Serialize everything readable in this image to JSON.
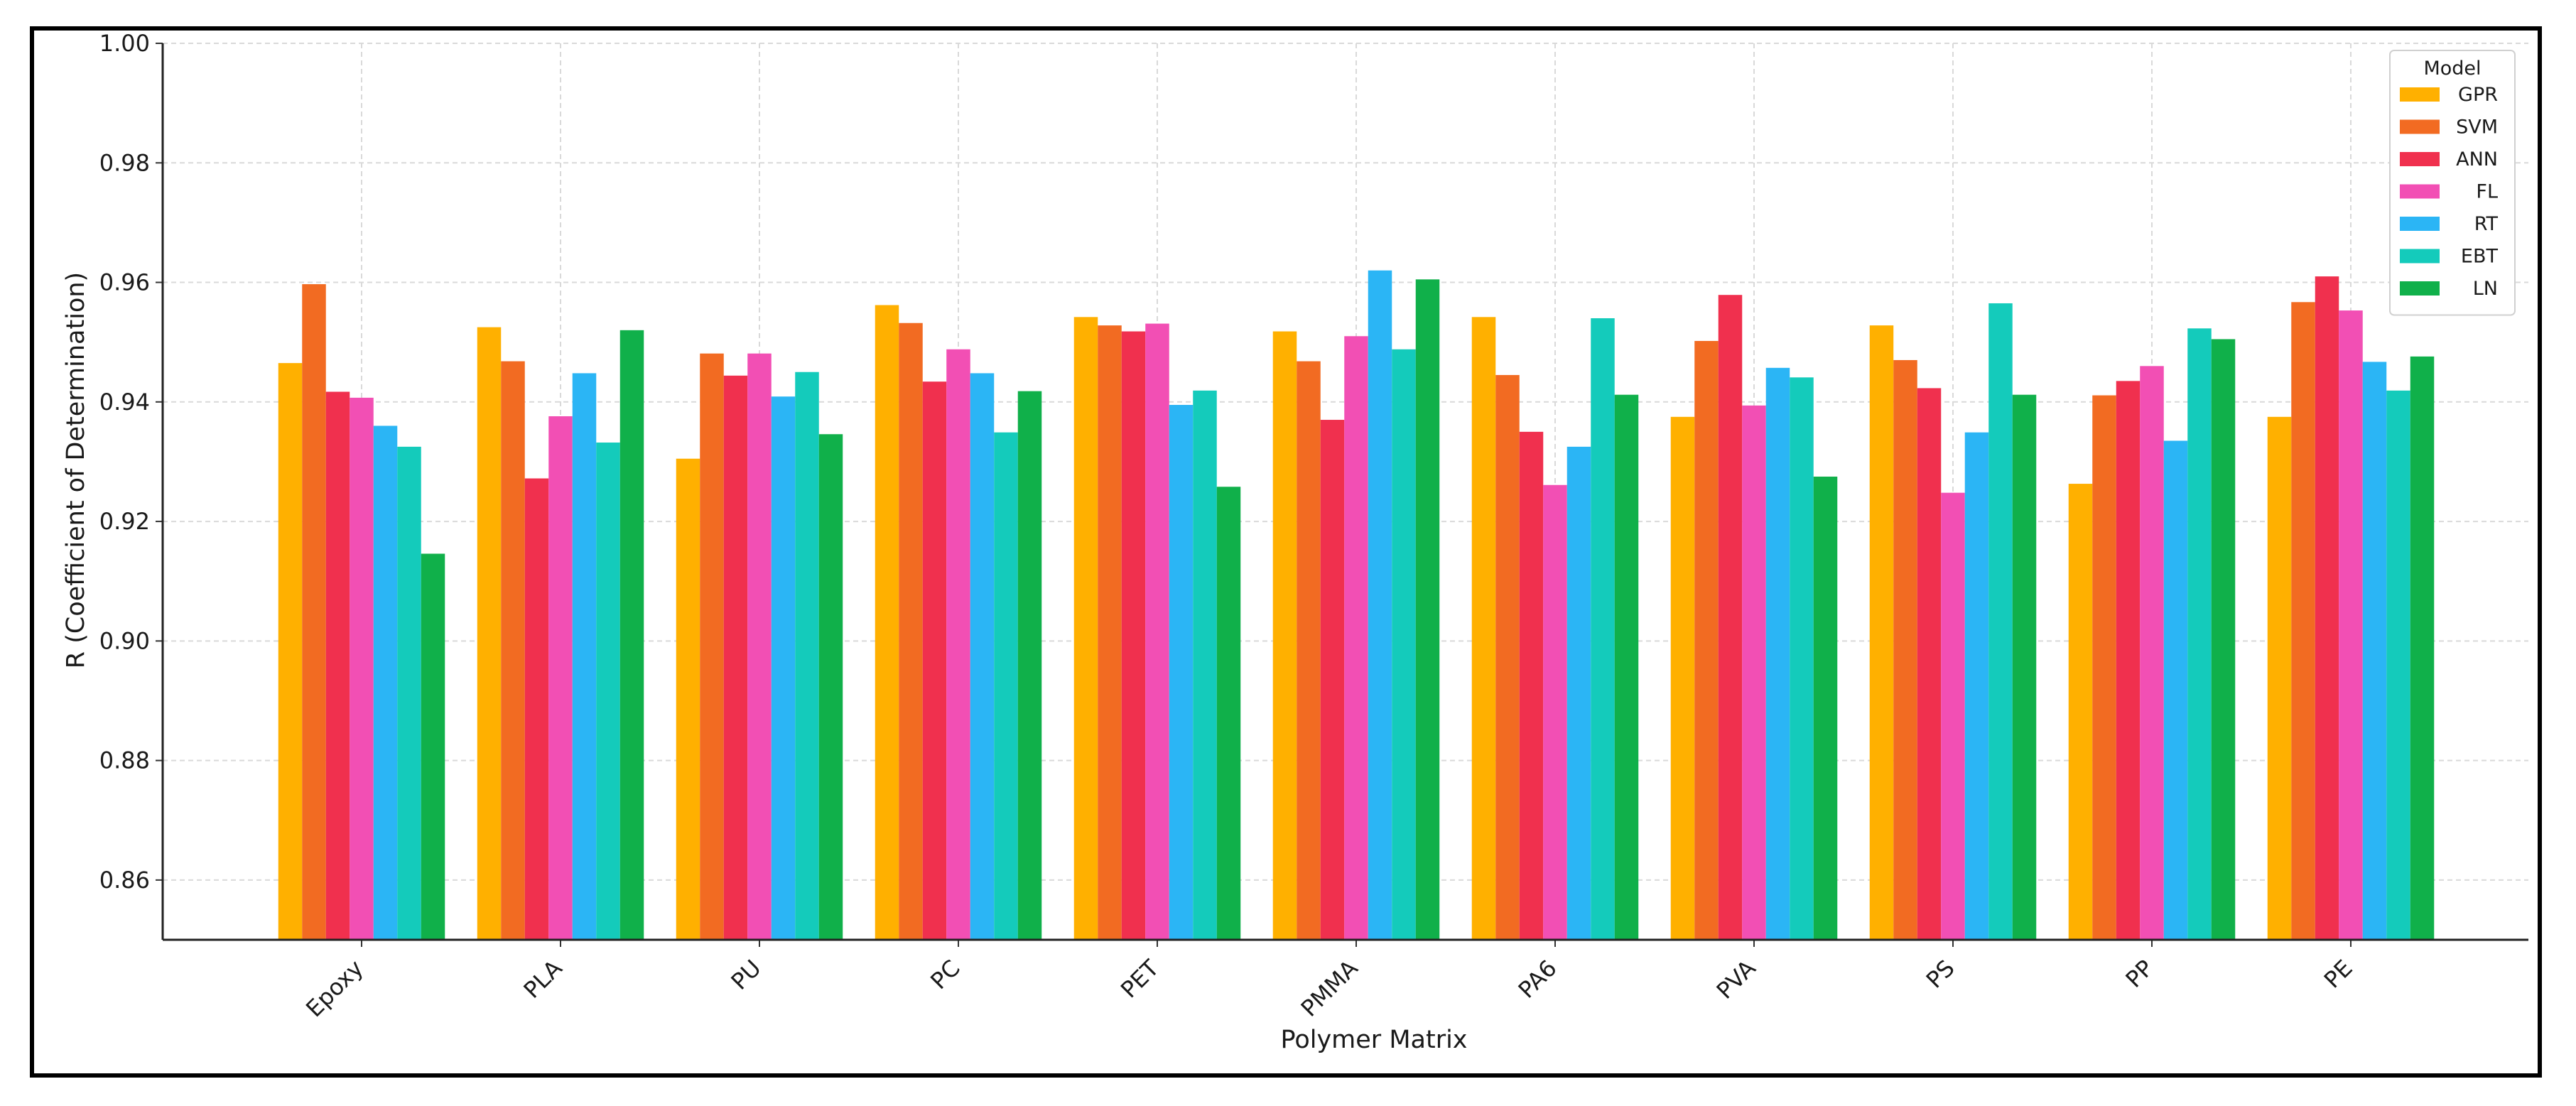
{
  "chart_data": {
    "type": "bar",
    "title": "",
    "xlabel": "Polymer Matrix",
    "ylabel": "R (Coefficient of Determination)",
    "ylim": [
      0.85,
      1.0
    ],
    "yticks": [
      "0.86",
      "0.88",
      "0.90",
      "0.92",
      "0.94",
      "0.96",
      "0.98",
      "1.00"
    ],
    "grid": true,
    "legend_title": "Model",
    "legend_position": "top-right",
    "categories": [
      "Epoxy",
      "PLA",
      "PU",
      "PC",
      "PET",
      "PMMA",
      "PA6",
      "PVA",
      "PS",
      "PP",
      "PE"
    ],
    "series": [
      {
        "name": "GPR",
        "color": "#FFB000",
        "values": [
          0.9465,
          0.9525,
          0.9305,
          0.9562,
          0.9542,
          0.9518,
          0.9542,
          0.9375,
          0.9528,
          0.9263,
          0.9375
        ]
      },
      {
        "name": "SVM",
        "color": "#F26B22",
        "values": [
          0.9597,
          0.9468,
          0.9481,
          0.9532,
          0.9528,
          0.9468,
          0.9445,
          0.9502,
          0.947,
          0.9411,
          0.9567
        ]
      },
      {
        "name": "ANN",
        "color": "#F0304E",
        "values": [
          0.9417,
          0.9272,
          0.9444,
          0.9434,
          0.9518,
          0.937,
          0.935,
          0.9579,
          0.9423,
          0.9435,
          0.961
        ]
      },
      {
        "name": "FL",
        "color": "#F24FB4",
        "values": [
          0.9407,
          0.9376,
          0.9481,
          0.9488,
          0.9531,
          0.951,
          0.9261,
          0.9394,
          0.9248,
          0.946,
          0.9553
        ]
      },
      {
        "name": "RT",
        "color": "#2BB5F5",
        "values": [
          0.936,
          0.9448,
          0.9409,
          0.9448,
          0.9395,
          0.962,
          0.9325,
          0.9457,
          0.9349,
          0.9335,
          0.9467
        ]
      },
      {
        "name": "EBT",
        "color": "#14CBBB",
        "values": [
          0.9325,
          0.9332,
          0.945,
          0.9349,
          0.9419,
          0.9488,
          0.954,
          0.9441,
          0.9565,
          0.9523,
          0.9419
        ]
      },
      {
        "name": "LN",
        "color": "#10B04A",
        "values": [
          0.9146,
          0.952,
          0.9346,
          0.9418,
          0.9258,
          0.9605,
          0.9412,
          0.9275,
          0.9412,
          0.9505,
          0.9476
        ]
      }
    ]
  }
}
